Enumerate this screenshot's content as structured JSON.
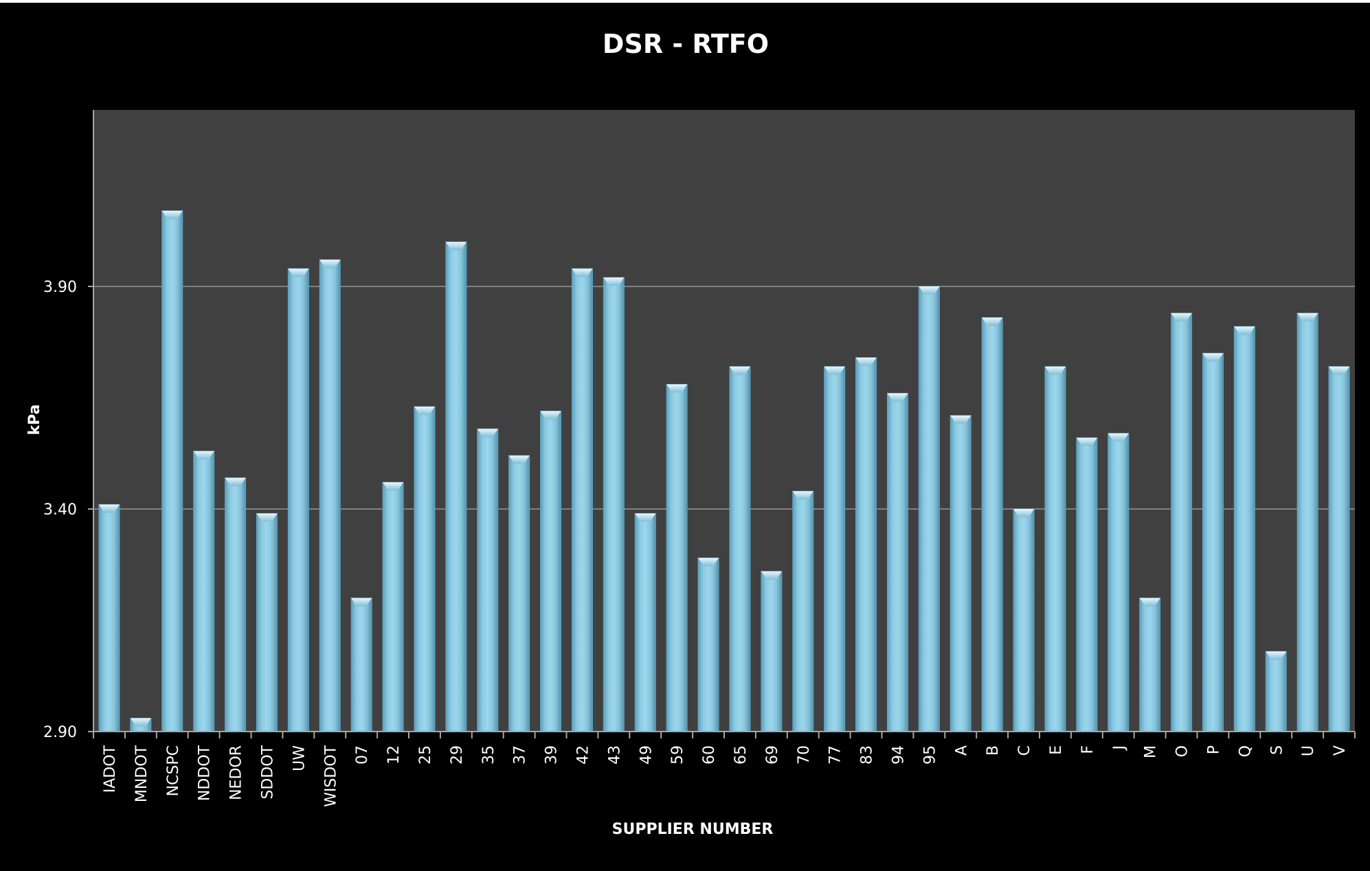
{
  "chart_data": {
    "type": "bar",
    "title": "DSR - RTFO",
    "xlabel": "SUPPLIER NUMBER",
    "ylabel": "kPa",
    "ylim": [
      2.9,
      4.3
    ],
    "yticks": [
      "2.90",
      "3.40",
      "3.90"
    ],
    "grid": true,
    "categories": [
      "IADOT",
      "MNDOT",
      "NCSPC",
      "NDDOT",
      "NEDOR",
      "SDDOT",
      "UW",
      "WISDOT",
      "07",
      "12",
      "25",
      "29",
      "35",
      "37",
      "39",
      "42",
      "43",
      "49",
      "59",
      "60",
      "65",
      "69",
      "70",
      "77",
      "83",
      "94",
      "95",
      "A",
      "B",
      "C",
      "E",
      "F",
      "J",
      "M",
      "O",
      "P",
      "Q",
      "S",
      "U",
      "V"
    ],
    "values": [
      3.41,
      2.93,
      4.07,
      3.53,
      3.47,
      3.39,
      3.94,
      3.96,
      3.2,
      3.46,
      3.63,
      4.0,
      3.58,
      3.52,
      3.62,
      3.94,
      3.92,
      3.39,
      3.68,
      3.29,
      3.72,
      3.26,
      3.44,
      3.72,
      3.74,
      3.66,
      3.9,
      3.61,
      3.83,
      3.4,
      3.72,
      3.56,
      3.57,
      3.2,
      3.84,
      3.75,
      3.81,
      3.08,
      3.84,
      3.72
    ],
    "colors": {
      "background": "#000000",
      "plot_area": "#404040",
      "bar": "#8fcde4",
      "bar_edge": "#5aa6c4",
      "gridline": "#808080",
      "text": "#ffffff"
    }
  }
}
